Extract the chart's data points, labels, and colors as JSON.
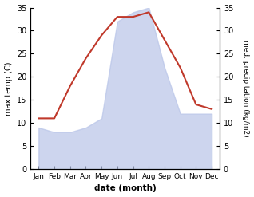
{
  "months": [
    "Jan",
    "Feb",
    "Mar",
    "Apr",
    "May",
    "Jun",
    "Jul",
    "Aug",
    "Sep",
    "Oct",
    "Nov",
    "Dec"
  ],
  "temperature": [
    11,
    11,
    18,
    24,
    29,
    33,
    33,
    34,
    28,
    22,
    14,
    13
  ],
  "precipitation": [
    9,
    8,
    8,
    9,
    11,
    32,
    34,
    35,
    22,
    12,
    12,
    12
  ],
  "temp_color": "#c0392b",
  "precip_fill_color": "#b8c4e8",
  "ylim": [
    0,
    35
  ],
  "yticks": [
    0,
    5,
    10,
    15,
    20,
    25,
    30,
    35
  ],
  "xlabel": "date (month)",
  "ylabel_left": "max temp (C)",
  "ylabel_right": "med. precipitation (kg/m2)",
  "background_color": "#ffffff",
  "plot_bg_color": "#ffffff"
}
